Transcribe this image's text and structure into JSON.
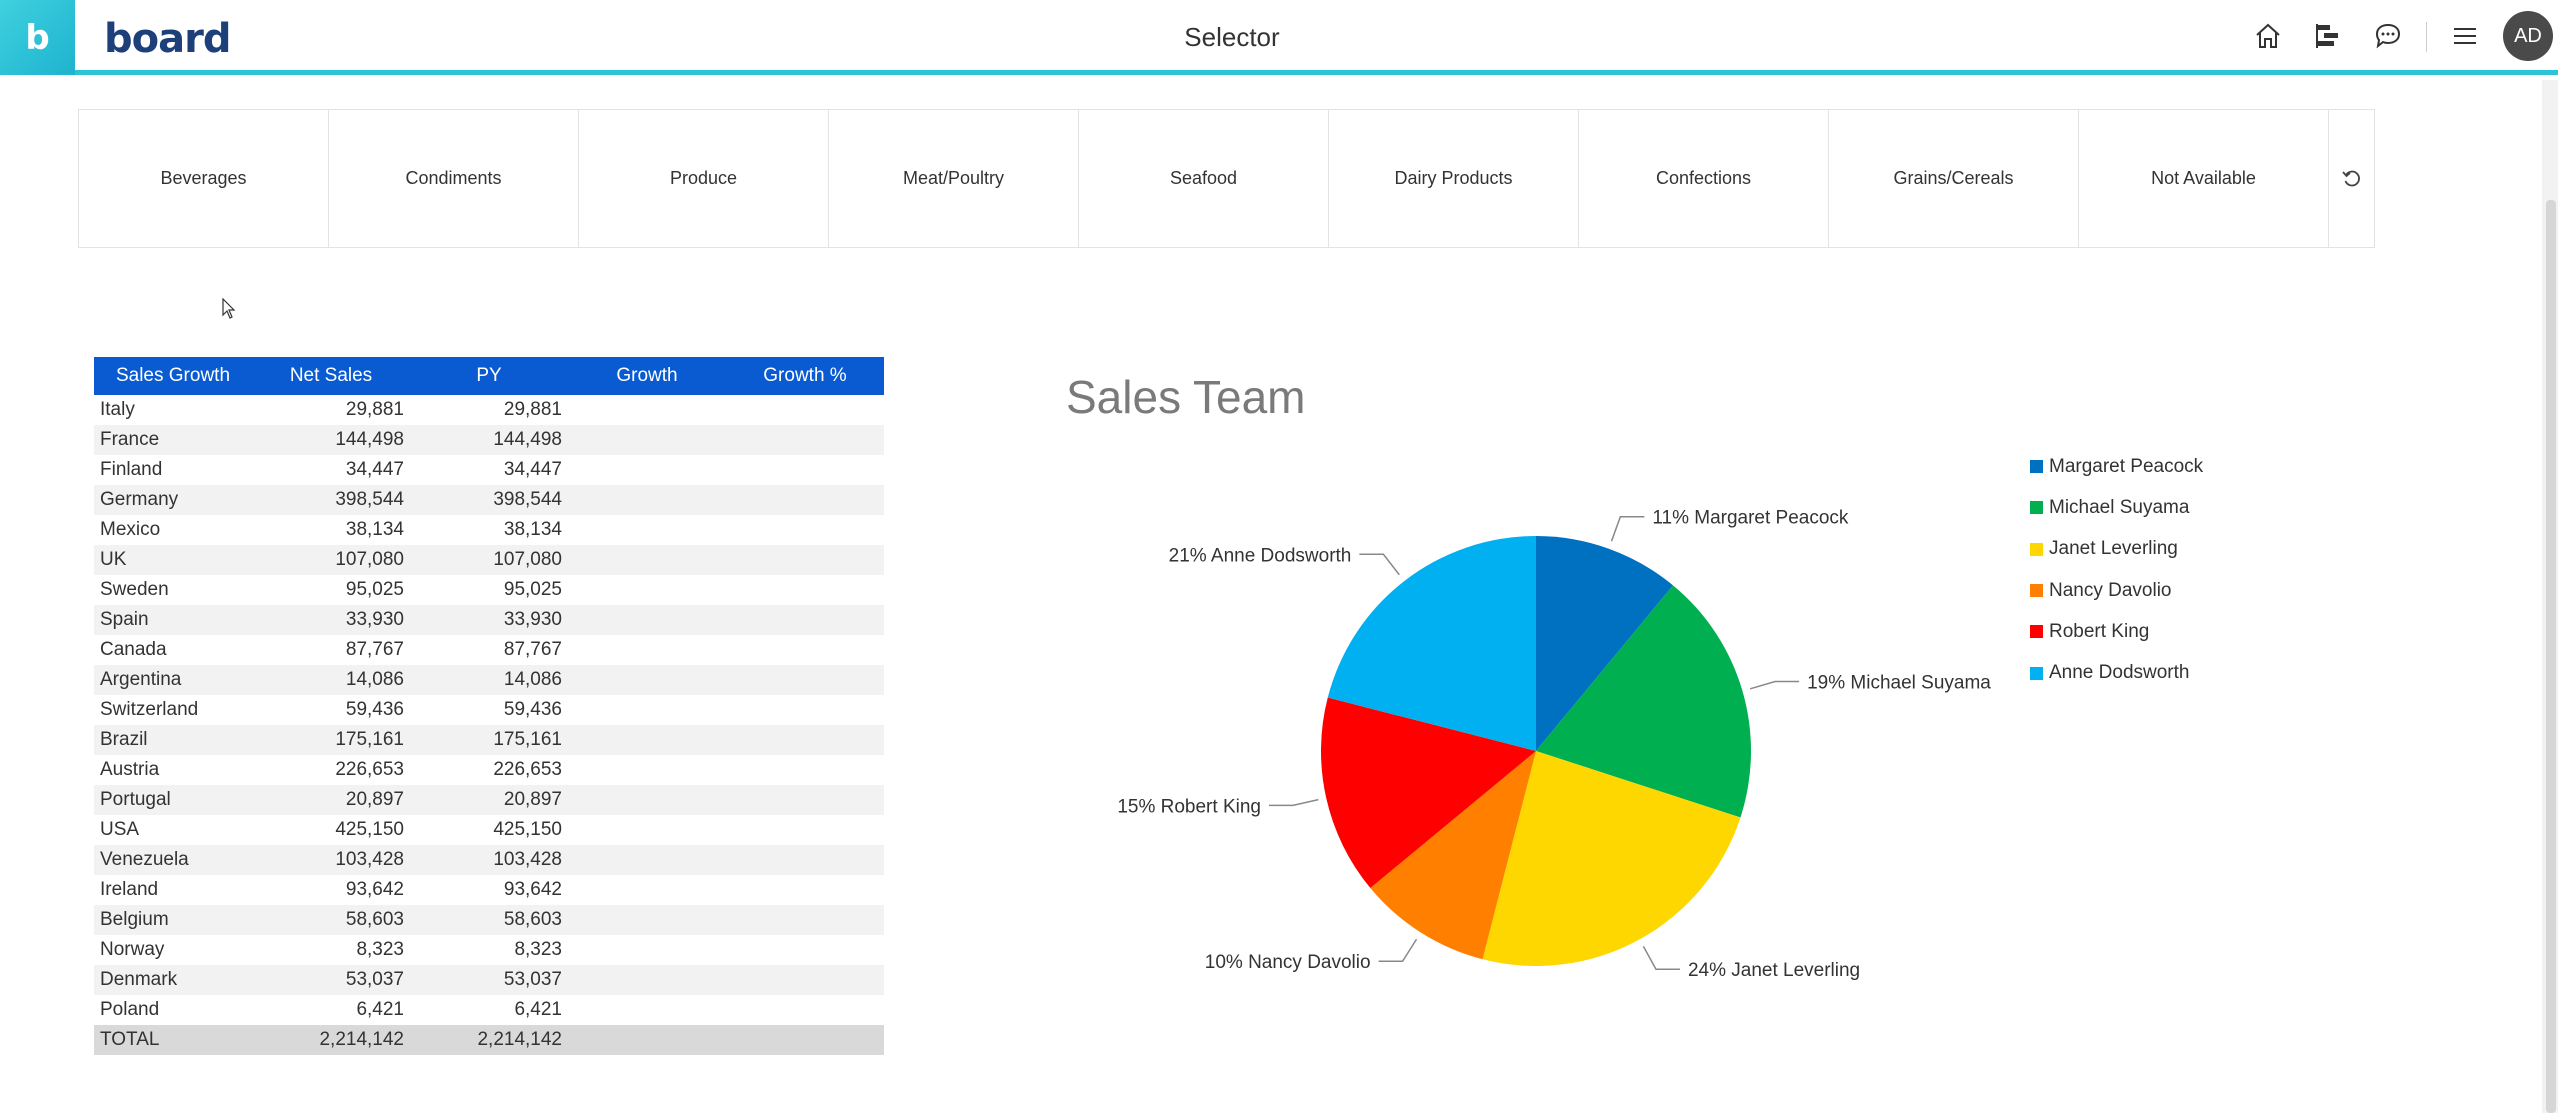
{
  "header": {
    "brand_letter": "b",
    "logo_text": "board",
    "title": "Selector",
    "avatar_initials": "AD",
    "icons": [
      "home-icon",
      "layout-icon",
      "chat-icon",
      "menu-icon"
    ]
  },
  "selector": {
    "items": [
      "Beverages",
      "Condiments",
      "Produce",
      "Meat/Poultry",
      "Seafood",
      "Dairy Products",
      "Confections",
      "Grains/Cereals",
      "Not Available"
    ],
    "reset_icon": "reset-icon"
  },
  "table": {
    "headers": [
      "Sales Growth",
      "Net Sales",
      "PY",
      "Growth",
      "Growth %"
    ],
    "rows": [
      {
        "country": "Italy",
        "net_sales": "29,881",
        "py": "29,881"
      },
      {
        "country": "France",
        "net_sales": "144,498",
        "py": "144,498"
      },
      {
        "country": "Finland",
        "net_sales": "34,447",
        "py": "34,447"
      },
      {
        "country": "Germany",
        "net_sales": "398,544",
        "py": "398,544"
      },
      {
        "country": "Mexico",
        "net_sales": "38,134",
        "py": "38,134"
      },
      {
        "country": "UK",
        "net_sales": "107,080",
        "py": "107,080"
      },
      {
        "country": "Sweden",
        "net_sales": "95,025",
        "py": "95,025"
      },
      {
        "country": "Spain",
        "net_sales": "33,930",
        "py": "33,930"
      },
      {
        "country": "Canada",
        "net_sales": "87,767",
        "py": "87,767"
      },
      {
        "country": "Argentina",
        "net_sales": "14,086",
        "py": "14,086"
      },
      {
        "country": "Switzerland",
        "net_sales": "59,436",
        "py": "59,436"
      },
      {
        "country": "Brazil",
        "net_sales": "175,161",
        "py": "175,161"
      },
      {
        "country": "Austria",
        "net_sales": "226,653",
        "py": "226,653"
      },
      {
        "country": "Portugal",
        "net_sales": "20,897",
        "py": "20,897"
      },
      {
        "country": "USA",
        "net_sales": "425,150",
        "py": "425,150"
      },
      {
        "country": "Venezuela",
        "net_sales": "103,428",
        "py": "103,428"
      },
      {
        "country": "Ireland",
        "net_sales": "93,642",
        "py": "93,642"
      },
      {
        "country": "Belgium",
        "net_sales": "58,603",
        "py": "58,603"
      },
      {
        "country": "Norway",
        "net_sales": "8,323",
        "py": "8,323"
      },
      {
        "country": "Denmark",
        "net_sales": "53,037",
        "py": "53,037"
      },
      {
        "country": "Poland",
        "net_sales": "6,421",
        "py": "6,421"
      }
    ],
    "total": {
      "label": "TOTAL",
      "net_sales": "2,214,142",
      "py": "2,214,142"
    }
  },
  "chart_data": {
    "type": "pie",
    "title": "Sales Team",
    "legend_position": "right",
    "slices": [
      {
        "name": "Margaret Peacock",
        "value": 11,
        "label": "11% Margaret Peacock",
        "color": "#0070c0"
      },
      {
        "name": "Michael Suyama",
        "value": 19,
        "label": "19% Michael Suyama",
        "color": "#00b050"
      },
      {
        "name": "Janet Leverling",
        "value": 24,
        "label": "24% Janet Leverling",
        "color": "#ffd700"
      },
      {
        "name": "Nancy Davolio",
        "value": 10,
        "label": "10% Nancy Davolio",
        "color": "#ff7f00"
      },
      {
        "name": "Robert King",
        "value": 15,
        "label": "15% Robert King",
        "color": "#ff0000"
      },
      {
        "name": "Anne Dodsworth",
        "value": 21,
        "label": "21% Anne Dodsworth",
        "color": "#00b0f0"
      }
    ]
  }
}
